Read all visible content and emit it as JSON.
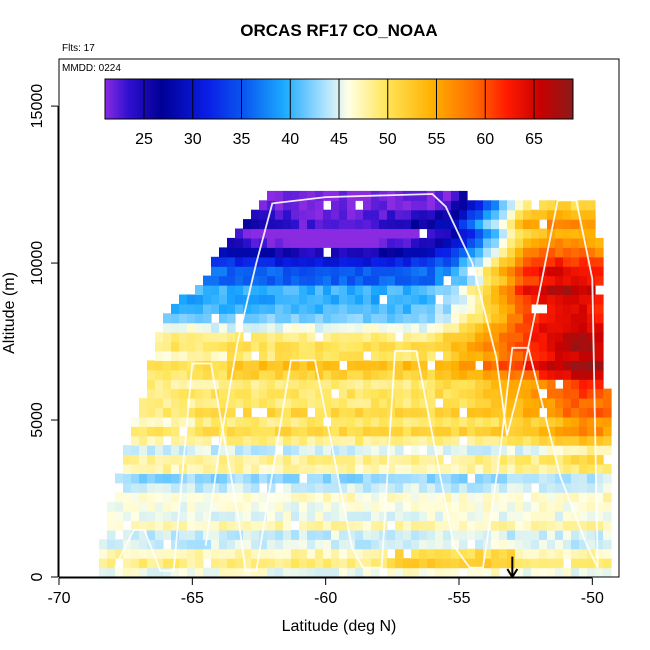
{
  "chart_data": {
    "type": "heatmap",
    "title": "ORCAS RF17 CO_NOAA",
    "notes": {
      "flights": "Flts: 17",
      "date": "MMDD: 0224"
    },
    "xlabel": "Latitude (deg N)",
    "ylabel": "Altitude (m)",
    "xlim": [
      -70,
      -49
    ],
    "ylim": [
      0,
      16500
    ],
    "x_ticks": [
      -70,
      -65,
      -60,
      -55,
      -50
    ],
    "x_tick_labels": [
      "-70",
      "-65",
      "-60",
      "-55",
      "-50"
    ],
    "y_ticks": [
      0,
      5000,
      10000,
      15000
    ],
    "y_tick_labels": [
      "0",
      "5000",
      "10000",
      "15000"
    ],
    "colorbar": {
      "min": 21,
      "max": 69,
      "ticks": [
        25,
        30,
        35,
        40,
        45,
        50,
        55,
        60,
        65
      ],
      "tick_labels": [
        "25",
        "30",
        "35",
        "40",
        "45",
        "50",
        "55",
        "60",
        "65"
      ]
    },
    "arrow_marker": {
      "lat": -53.0,
      "from_alt": 650,
      "to_alt": 0
    },
    "flight_track": [
      [
        -67.9,
        300
      ],
      [
        -67.2,
        1500
      ],
      [
        -66.8,
        1500
      ],
      [
        -66.2,
        200
      ],
      [
        -65.7,
        200
      ],
      [
        -65.0,
        6800
      ],
      [
        -64.3,
        6800
      ],
      [
        -63.3,
        2000
      ],
      [
        -63.0,
        200
      ],
      [
        -62.6,
        200
      ],
      [
        -61.3,
        6900
      ],
      [
        -60.4,
        6900
      ],
      [
        -59.0,
        900
      ],
      [
        -58.6,
        300
      ],
      [
        -57.9,
        300
      ],
      [
        -57.4,
        7200
      ],
      [
        -56.6,
        7200
      ],
      [
        -55.2,
        1000
      ],
      [
        -54.6,
        300
      ],
      [
        -54.1,
        300
      ],
      [
        -53.5,
        3700
      ],
      [
        -53.0,
        7300
      ],
      [
        -52.4,
        7300
      ],
      [
        -51.2,
        3200
      ],
      [
        -50.2,
        1000
      ],
      [
        -49.8,
        300
      ],
      [
        -50.0,
        9500
      ],
      [
        -50.6,
        12000
      ],
      [
        -51.3,
        12000
      ],
      [
        -52.0,
        9000
      ],
      [
        -52.6,
        6500
      ],
      [
        -53.2,
        4500
      ],
      [
        -53.6,
        7000
      ],
      [
        -54.5,
        10000
      ],
      [
        -55.5,
        11800
      ],
      [
        -56.0,
        12200
      ],
      [
        -60.0,
        12100
      ],
      [
        -62.0,
        11900
      ],
      [
        -62.6,
        10000
      ],
      [
        -63.3,
        7500
      ],
      [
        -64.0,
        4000
      ],
      [
        -64.5,
        1000
      ]
    ],
    "curtain": {
      "lat_start": -68.5,
      "lat_end": -49.5,
      "lat_step": 0.3,
      "alt_step": 300,
      "upper_boundary": [
        [
          -68.5,
          1200
        ],
        [
          -67.0,
          5800
        ],
        [
          -66.5,
          7600
        ],
        [
          -66.0,
          8400
        ],
        [
          -65.0,
          9100
        ],
        [
          -64.0,
          10300
        ],
        [
          -63.0,
          11400
        ],
        [
          -62.3,
          12200
        ],
        [
          -58.0,
          12200
        ],
        [
          -56.0,
          12200
        ],
        [
          -55.0,
          12000
        ],
        [
          -50.2,
          12000
        ],
        [
          -49.9,
          10500
        ],
        [
          -49.5,
          4200
        ]
      ],
      "field_notes": [
        "dark blue band (25-33) across top 10000-12200 m from -64 to -56",
        "purple minimum (~22) near 10800 m, lat -62 to -58",
        "sky blue (38-44) between 8000-10000 m",
        "pale blue / white (44-48) background below 8000 m",
        "yellow-orange streaks (50-56) at 5000, 6800 and 600 m layers",
        "red/orange plume (58-68) north of -55 between 5000 and 11500 m"
      ]
    }
  }
}
